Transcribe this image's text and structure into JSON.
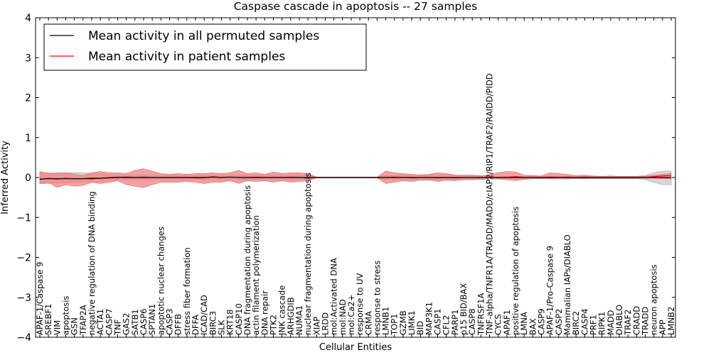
{
  "chart_data": {
    "type": "line",
    "title": "Caspase cascade in apoptosis -- 27 samples",
    "xlabel": "Cellular Entities",
    "ylabel": "Inferred Activity",
    "ylim": [
      -4,
      4
    ],
    "yticks": [
      "4",
      "3",
      "2",
      "1",
      "0",
      "−1",
      "−2",
      "−3",
      "−4"
    ],
    "grid": false,
    "legend_position": "top-left",
    "colors": {
      "permuted": "#000000",
      "patient": "#ff0000",
      "patient_band": "#f08080",
      "permuted_band": "#c8c8c8"
    },
    "categories": [
      "APAF-1/Caspase 9",
      "SREBF1",
      "VIM",
      "apoptosis",
      "GSN",
      "TFAP2A",
      "negative regulation of DNA binding",
      "ACTA1",
      "CASP7",
      "TNF",
      "GAS2",
      "SATB1",
      "CASP6",
      "SPTAN1",
      "apoptotic nuclear changes",
      "CASP3",
      "DFFB",
      "stress fiber formation",
      "DFFA",
      "ICAD/CAD",
      "BIRC3",
      "SLK",
      "KRT18",
      "CASP10",
      "DNA fragmentation during apoptosis",
      "actin filament polymerization",
      "DNA repair",
      "PTK2",
      "JNK cascade",
      "ARHGDIB",
      "NUMA1",
      "nuclear fragmentation during apoptosis",
      "XIAP",
      "LRDD",
      "mol:Activated DNA",
      "mol:NAD",
      "mol:Ca2+",
      "response to UV",
      "CRMA",
      "response to stress",
      "LMNB1",
      "TOP1",
      "GZMB",
      "LIMK1",
      "BID",
      "MAP3K1",
      "CASP1",
      "CFL2",
      "PARP1",
      "p15 BID/BAX",
      "CASP8",
      "TNFRSF1A",
      "TNF-alpha/TNFR1A/TRADD/MADD/cIAP2/RIP1/TRAF2/RAIDD/PIDD",
      "CYCS",
      "APAF1",
      "positive regulation of apoptosis",
      "LMNA",
      "BAX",
      "CASP9",
      "APAF-1/Pro-Caspase 9",
      "CASP2",
      "Mammalian IAPs/DIABLO",
      "BIRC2",
      "CASP4",
      "PRF1",
      "RIPK1",
      "MADD",
      "DIABLO",
      "TRAF2",
      "CRADD",
      "TRADD",
      "neuron apoptosis",
      "APP",
      "LMNB2"
    ],
    "series": [
      {
        "name": "Mean activity in all permuted samples",
        "color": "#000000",
        "values": [
          -0.04,
          -0.03,
          -0.03,
          -0.03,
          -0.03,
          -0.03,
          -0.03,
          -0.02,
          -0.01,
          0,
          0.01,
          0,
          0,
          0,
          0,
          0,
          0,
          0,
          0,
          0,
          0.01,
          0,
          0.01,
          0,
          0,
          0,
          0,
          0,
          0,
          0,
          0,
          0,
          0,
          0,
          0,
          0,
          0,
          0,
          0,
          0,
          0,
          0,
          0,
          0,
          0,
          0,
          0,
          0,
          0,
          0,
          0,
          0,
          0,
          0,
          0,
          0,
          0,
          0,
          0,
          0,
          0,
          0,
          0,
          0,
          0,
          0,
          0,
          0,
          0,
          0,
          0,
          0,
          0,
          0
        ],
        "band_low": [
          -0.15,
          -0.15,
          -0.13,
          -0.13,
          -0.12,
          -0.12,
          -0.1,
          -0.1,
          -0.08,
          -0.06,
          -0.06,
          -0.06,
          -0.06,
          -0.06,
          -0.06,
          -0.06,
          -0.06,
          -0.06,
          -0.06,
          -0.06,
          -0.06,
          -0.06,
          -0.06,
          -0.06,
          -0.06,
          -0.06,
          -0.06,
          -0.06,
          -0.06,
          -0.06,
          -0.06,
          -0.06,
          -0.01,
          -0.01,
          -0.01,
          -0.01,
          -0.01,
          -0.01,
          -0.01,
          -0.01,
          -0.05,
          -0.05,
          -0.06,
          -0.06,
          -0.07,
          -0.07,
          -0.07,
          -0.07,
          -0.06,
          -0.06,
          -0.05,
          -0.05,
          -0.04,
          -0.03,
          -0.03,
          -0.03,
          -0.03,
          -0.03,
          -0.03,
          -0.03,
          -0.03,
          -0.03,
          -0.03,
          -0.03,
          -0.03,
          -0.03,
          -0.03,
          -0.03,
          -0.03,
          -0.03,
          -0.05,
          -0.12,
          -0.18,
          -0.18
        ],
        "band_high": [
          0.12,
          0.12,
          0.12,
          0.12,
          0.12,
          0.12,
          0.1,
          0.1,
          0.08,
          0.06,
          0.06,
          0.06,
          0.06,
          0.06,
          0.06,
          0.06,
          0.06,
          0.06,
          0.06,
          0.06,
          0.06,
          0.06,
          0.06,
          0.06,
          0.06,
          0.06,
          0.06,
          0.06,
          0.06,
          0.06,
          0.06,
          0.06,
          0.01,
          0.01,
          0.01,
          0.01,
          0.01,
          0.01,
          0.01,
          0.01,
          0.05,
          0.05,
          0.06,
          0.06,
          0.07,
          0.07,
          0.07,
          0.07,
          0.06,
          0.06,
          0.05,
          0.05,
          0.04,
          0.03,
          0.03,
          0.03,
          0.03,
          0.03,
          0.03,
          0.03,
          0.03,
          0.03,
          0.03,
          0.03,
          0.03,
          0.03,
          0.03,
          0.03,
          0.03,
          0.03,
          0.05,
          0.12,
          0.16,
          0.16
        ]
      },
      {
        "name": "Mean activity in patient samples",
        "color": "#ff0000",
        "values": [
          -0.05,
          -0.02,
          -0.04,
          -0.02,
          -0.03,
          -0.03,
          -0.01,
          -0.02,
          0,
          0.01,
          -0.01,
          0,
          0.01,
          0,
          0,
          0,
          0,
          0,
          -0.01,
          -0.01,
          0.02,
          0,
          0.01,
          0,
          0,
          0.01,
          0,
          0,
          0,
          0.01,
          0,
          0,
          0,
          0,
          0,
          0,
          0,
          0,
          0,
          0,
          0,
          0.01,
          0,
          -0.01,
          0,
          0,
          -0.01,
          0,
          -0.01,
          0,
          0,
          0,
          0,
          0,
          0,
          0.02,
          0,
          0,
          0,
          0.01,
          0,
          0.01,
          0,
          0.01,
          0,
          0,
          0,
          0,
          0,
          0,
          0,
          0.02,
          0.04,
          0.05
        ],
        "band_low": [
          -0.15,
          -0.12,
          -0.25,
          -0.18,
          -0.22,
          -0.2,
          -0.12,
          -0.15,
          -0.12,
          -0.08,
          -0.18,
          -0.22,
          -0.25,
          -0.18,
          -0.12,
          -0.12,
          -0.12,
          -0.1,
          -0.12,
          -0.15,
          -0.12,
          -0.12,
          -0.08,
          -0.15,
          -0.08,
          -0.1,
          -0.08,
          -0.12,
          -0.08,
          -0.12,
          -0.1,
          -0.08,
          -0.01,
          -0.01,
          -0.01,
          -0.01,
          -0.01,
          -0.01,
          -0.01,
          -0.01,
          -0.15,
          -0.12,
          -0.08,
          -0.1,
          -0.06,
          -0.05,
          -0.1,
          -0.06,
          -0.08,
          -0.05,
          -0.06,
          -0.03,
          -0.04,
          -0.04,
          -0.06,
          -0.08,
          -0.05,
          -0.03,
          -0.02,
          -0.03,
          -0.03,
          -0.04,
          -0.02,
          -0.03,
          -0.02,
          -0.02,
          -0.02,
          -0.02,
          -0.02,
          -0.02,
          -0.02,
          -0.02,
          -0.03,
          -0.03
        ],
        "band_high": [
          0.15,
          0.1,
          0.1,
          0.12,
          0.08,
          0.05,
          0.12,
          0.15,
          0.12,
          0.12,
          0.1,
          0.18,
          0.22,
          0.16,
          0.1,
          0.08,
          0.1,
          0.08,
          0.1,
          0.1,
          0.12,
          0.1,
          0.12,
          0.18,
          0.1,
          0.12,
          0.08,
          0.14,
          0.1,
          0.12,
          0.12,
          0.1,
          0.01,
          0.01,
          0.01,
          0.01,
          0.01,
          0.01,
          0.01,
          0.01,
          0.16,
          0.12,
          0.1,
          0.08,
          0.06,
          0.08,
          0.12,
          0.1,
          0.06,
          0.05,
          0.06,
          0.03,
          0.08,
          0.12,
          0.15,
          0.14,
          0.06,
          0.05,
          0.04,
          0.12,
          0.1,
          0.08,
          0.05,
          0.06,
          0.04,
          0.03,
          0.04,
          0.03,
          0.03,
          0.03,
          0.03,
          0.05,
          0.08,
          0.1
        ]
      }
    ]
  }
}
